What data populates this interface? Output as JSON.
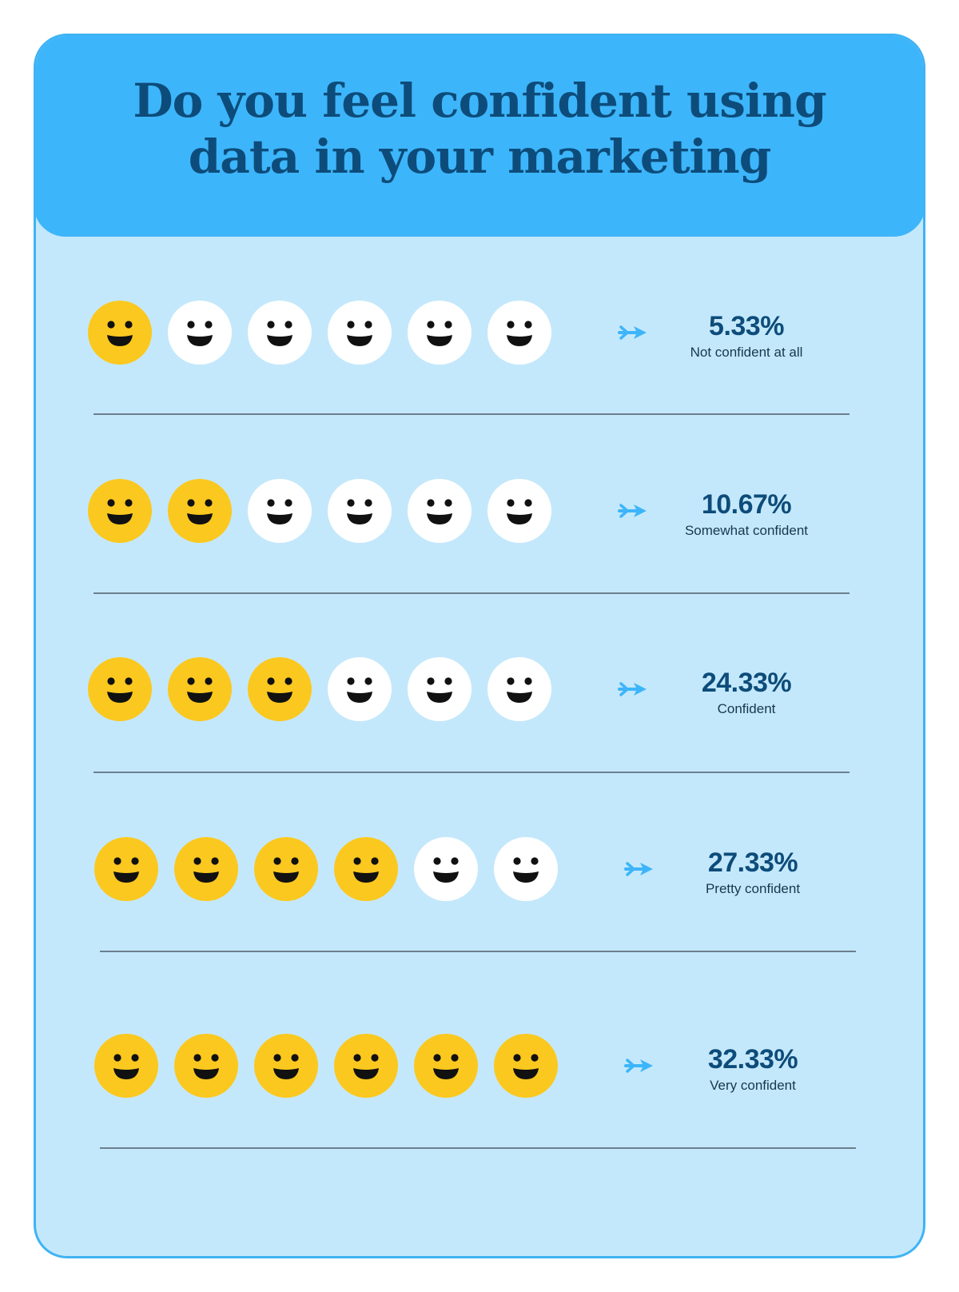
{
  "title_line1": "Do you feel confident using",
  "title_line2": "data in your marketing",
  "colors": {
    "header_bg": "#3db5fa",
    "card_bg": "#c4e8fb",
    "title": "#0d4c7a",
    "face_filled": "#fbc81f",
    "face_empty": "#ffffff",
    "arrow": "#3db5fa",
    "value_text": "#0d4c7a"
  },
  "icons": {
    "face": "smiley-face-icon",
    "arrow": "double-arrow-right-icon"
  },
  "chart_data": {
    "type": "pictograph",
    "title": "Do you feel confident using data in your marketing",
    "unit": "%",
    "icons_per_row": 6,
    "rows": [
      {
        "label": "Not confident at all",
        "value_text": "5.33%",
        "value": 5.33,
        "filled_icons": 1
      },
      {
        "label": "Somewhat confident",
        "value_text": "10.67%",
        "value": 10.67,
        "filled_icons": 2
      },
      {
        "label": "Confident",
        "value_text": "24.33%",
        "value": 24.33,
        "filled_icons": 3
      },
      {
        "label": "Pretty confident",
        "value_text": "27.33%",
        "value": 27.33,
        "filled_icons": 4
      },
      {
        "label": "Very confident",
        "value_text": "32.33%",
        "value": 32.33,
        "filled_icons": 6
      }
    ]
  }
}
